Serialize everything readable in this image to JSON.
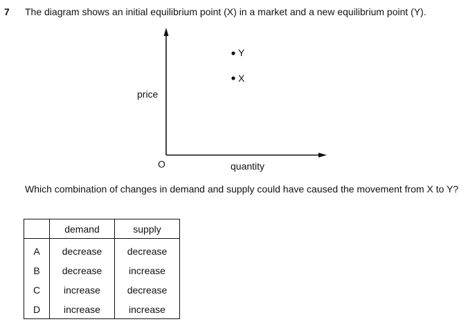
{
  "question": {
    "number": "7",
    "text": "The diagram shows an initial equilibrium point (X) in a market and a new equilibrium point (Y)."
  },
  "diagram": {
    "y_axis_label": "price",
    "x_axis_label": "quantity",
    "origin_label": "O",
    "points": [
      {
        "label": "Y"
      },
      {
        "label": "X"
      }
    ]
  },
  "prompt": "Which combination of changes in demand and supply could have caused the movement from X to Y?",
  "options_table": {
    "headers": [
      "",
      "demand",
      "supply"
    ],
    "rows": [
      {
        "letter": "A",
        "demand": "decrease",
        "supply": "decrease"
      },
      {
        "letter": "B",
        "demand": "decrease",
        "supply": "increase"
      },
      {
        "letter": "C",
        "demand": "increase",
        "supply": "decrease"
      },
      {
        "letter": "D",
        "demand": "increase",
        "supply": "increase"
      }
    ]
  }
}
